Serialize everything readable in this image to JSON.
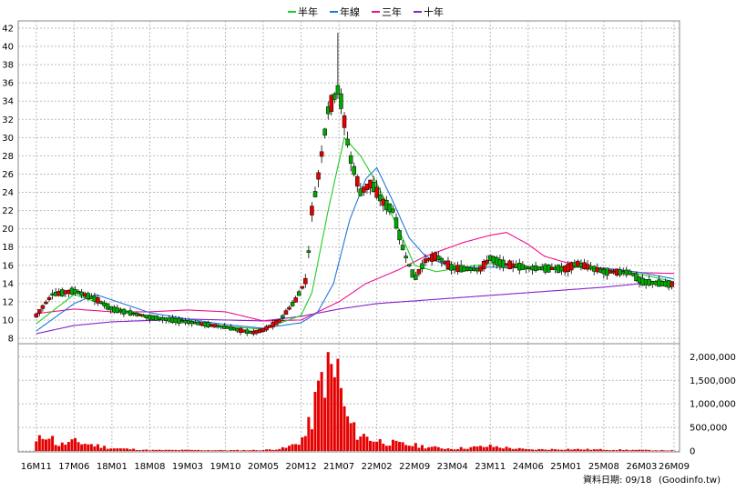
{
  "chart_data": {
    "type": "candlestick",
    "legend": [
      {
        "name": "半年",
        "color": "#22cc22"
      },
      {
        "name": "年線",
        "color": "#2277dd"
      },
      {
        "name": "三年",
        "color": "#ee1188"
      },
      {
        "name": "十年",
        "color": "#8822cc"
      }
    ],
    "price_axis": {
      "ylim": [
        8,
        42
      ],
      "ticks": [
        8,
        10,
        12,
        14,
        16,
        18,
        20,
        22,
        24,
        26,
        28,
        30,
        32,
        34,
        36,
        38,
        40,
        42
      ],
      "grid": true
    },
    "volume_axis": {
      "ylim": [
        0,
        2200000
      ],
      "ticks": [
        0,
        500000,
        1000000,
        1500000,
        2000000
      ],
      "tick_labels": [
        "0",
        "500,000",
        "1,000,000",
        "1,500,000",
        "2,000,000"
      ],
      "grid": true
    },
    "x_tick_labels": [
      "16M11",
      "17M06",
      "18M01",
      "18M08",
      "19M03",
      "19M10",
      "20M05",
      "20M12",
      "21M07",
      "22M02",
      "22M09",
      "23M04",
      "23M11",
      "24M06",
      "25M01",
      "25M08",
      "26M03",
      "26M09"
    ],
    "price_anchors": [
      [
        "16M11",
        10.5
      ],
      [
        "17M02",
        12.8
      ],
      [
        "17M06",
        13.2
      ],
      [
        "17M10",
        12.3
      ],
      [
        "18M01",
        11.2
      ],
      [
        "18M08",
        10.3
      ],
      [
        "19M03",
        9.8
      ],
      [
        "19M10",
        9.2
      ],
      [
        "20M03",
        8.6
      ],
      [
        "20M05",
        8.9
      ],
      [
        "20M08",
        9.9
      ],
      [
        "20M11",
        12.2
      ],
      [
        "21M01",
        14.5
      ],
      [
        "21M02",
        22
      ],
      [
        "21M03",
        25
      ],
      [
        "21M05",
        33
      ],
      [
        "21M07",
        35.5
      ],
      [
        "21M09",
        28
      ],
      [
        "21M11",
        24
      ],
      [
        "22M01",
        25
      ],
      [
        "22M03",
        23
      ],
      [
        "22M05",
        22
      ],
      [
        "22M07",
        17.5
      ],
      [
        "22M09",
        14.5
      ],
      [
        "22M11",
        16.5
      ],
      [
        "23M01",
        17
      ],
      [
        "23M04",
        15.7
      ],
      [
        "23M09",
        15.5
      ],
      [
        "23M11",
        16.8
      ],
      [
        "24M01",
        16.2
      ],
      [
        "24M06",
        15.7
      ],
      [
        "25M01",
        15.6
      ],
      [
        "25M03",
        16.2
      ],
      [
        "25M08",
        15.3
      ],
      [
        "26M01",
        15.2
      ],
      [
        "26M03",
        14.2
      ],
      [
        "26M09",
        13.9
      ]
    ],
    "price_peak": {
      "x": "21M07",
      "high": 41.5
    },
    "ma_half_year": [
      [
        "16M11",
        9.6
      ],
      [
        "17M06",
        12.8
      ],
      [
        "18M01",
        11.4
      ],
      [
        "18M08",
        10.4
      ],
      [
        "19M03",
        9.9
      ],
      [
        "19M10",
        9.3
      ],
      [
        "20M05",
        9.0
      ],
      [
        "20M12",
        10.5
      ],
      [
        "21M02",
        13
      ],
      [
        "21M05",
        22
      ],
      [
        "21M08",
        30
      ],
      [
        "21M11",
        28
      ],
      [
        "22M02",
        25
      ],
      [
        "22M06",
        20
      ],
      [
        "22M09",
        16
      ],
      [
        "23M01",
        15.3
      ],
      [
        "23M06",
        15.8
      ],
      [
        "23M11",
        16.2
      ],
      [
        "24M06",
        15.8
      ],
      [
        "25M03",
        15.8
      ],
      [
        "25M08",
        15.5
      ],
      [
        "26M03",
        15
      ],
      [
        "26M09",
        14.2
      ]
    ],
    "ma_year": [
      [
        "16M11",
        8.8
      ],
      [
        "17M06",
        11.8
      ],
      [
        "17M10",
        12.8
      ],
      [
        "18M01",
        12.2
      ],
      [
        "18M08",
        10.8
      ],
      [
        "19M03",
        10.1
      ],
      [
        "19M10",
        9.5
      ],
      [
        "20M05",
        9.1
      ],
      [
        "20M12",
        9.7
      ],
      [
        "21M03",
        10.8
      ],
      [
        "21M06",
        14
      ],
      [
        "21M09",
        21
      ],
      [
        "21M12",
        25.5
      ],
      [
        "22M02",
        26.7
      ],
      [
        "22M05",
        23
      ],
      [
        "22M08",
        19
      ],
      [
        "22M11",
        17
      ],
      [
        "23M04",
        15.7
      ],
      [
        "23M11",
        15.8
      ],
      [
        "24M06",
        15.7
      ],
      [
        "25M01",
        15.8
      ],
      [
        "25M08",
        15.7
      ],
      [
        "26M03",
        15.2
      ],
      [
        "26M09",
        14.5
      ]
    ],
    "ma_three_year": [
      [
        "16M11",
        10.7
      ],
      [
        "17M06",
        11.2
      ],
      [
        "18M01",
        10.9
      ],
      [
        "18M08",
        10.9
      ],
      [
        "19M03",
        11.1
      ],
      [
        "19M10",
        10.9
      ],
      [
        "20M05",
        9.9
      ],
      [
        "20M12",
        10
      ],
      [
        "21M07",
        12
      ],
      [
        "21M12",
        14
      ],
      [
        "22M06",
        15.5
      ],
      [
        "22M11",
        17
      ],
      [
        "23M06",
        18.5
      ],
      [
        "23M11",
        19.3
      ],
      [
        "24M02",
        19.6
      ],
      [
        "24M06",
        18.3
      ],
      [
        "24M09",
        17
      ],
      [
        "25M01",
        16.3
      ],
      [
        "25M08",
        15.6
      ],
      [
        "26M03",
        15.2
      ],
      [
        "26M09",
        15.1
      ]
    ],
    "ma_ten_year": [
      [
        "16M11",
        8.5
      ],
      [
        "17M06",
        9.4
      ],
      [
        "18M01",
        9.8
      ],
      [
        "19M03",
        10.1
      ],
      [
        "20M05",
        9.9
      ],
      [
        "20M12",
        10.4
      ],
      [
        "21M07",
        11.2
      ],
      [
        "22M02",
        11.8
      ],
      [
        "22M09",
        12.1
      ],
      [
        "23M04",
        12.4
      ],
      [
        "23M11",
        12.7
      ],
      [
        "24M06",
        13
      ],
      [
        "25M01",
        13.3
      ],
      [
        "25M08",
        13.6
      ],
      [
        "26M03",
        14
      ],
      [
        "26M09",
        14.2
      ]
    ],
    "volume_anchors": [
      [
        "16M11",
        180000
      ],
      [
        "17M01",
        400000
      ],
      [
        "17M03",
        120000
      ],
      [
        "17M06",
        200000
      ],
      [
        "17M09",
        140000
      ],
      [
        "18M01",
        60000
      ],
      [
        "18M08",
        20000
      ],
      [
        "19M03",
        20000
      ],
      [
        "19M10",
        15000
      ],
      [
        "20M05",
        20000
      ],
      [
        "20M09",
        60000
      ],
      [
        "20M11",
        150000
      ],
      [
        "21M01",
        350000
      ],
      [
        "21M03",
        1100000
      ],
      [
        "21M04",
        1600000
      ],
      [
        "21M05",
        2100000
      ],
      [
        "21M06",
        1400000
      ],
      [
        "21M07",
        1800000
      ],
      [
        "21M08",
        800000
      ],
      [
        "21M10",
        400000
      ],
      [
        "21M12",
        300000
      ],
      [
        "22M02",
        220000
      ],
      [
        "22M06",
        150000
      ],
      [
        "22M09",
        120000
      ],
      [
        "23M01",
        70000
      ],
      [
        "23M04",
        50000
      ],
      [
        "23M11",
        100000
      ],
      [
        "24M06",
        30000
      ],
      [
        "25M01",
        40000
      ],
      [
        "25M08",
        30000
      ],
      [
        "26M03",
        20000
      ],
      [
        "26M09",
        12000
      ]
    ]
  },
  "footer": {
    "data_date": "資料日期: 09/18",
    "source": "(Goodinfo.tw)"
  }
}
